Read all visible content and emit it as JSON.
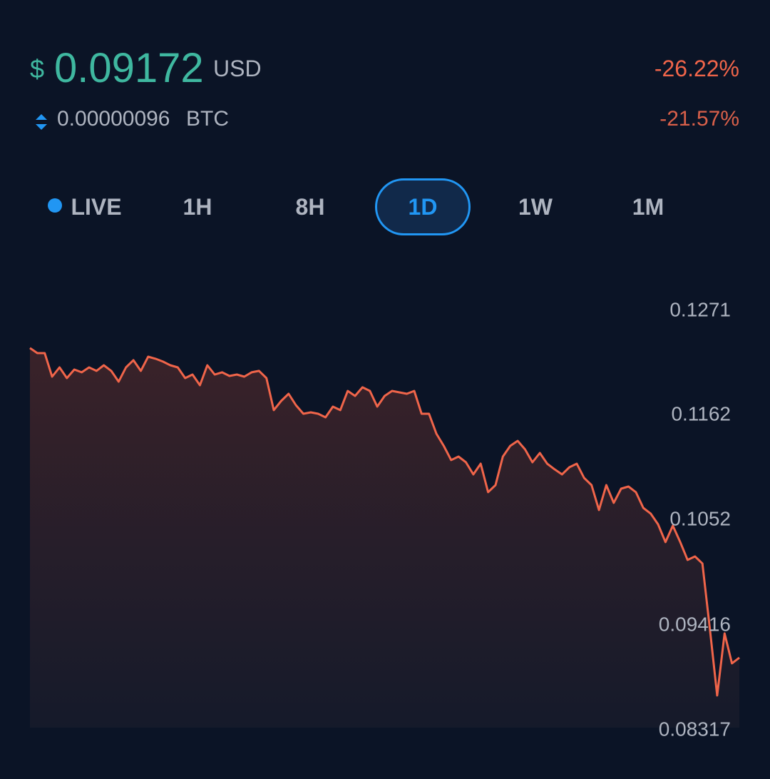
{
  "header": {
    "currency_symbol": "$",
    "price": "0.09172",
    "price_unit": "USD",
    "change_usd": "-26.22%",
    "btc_price": "0.00000096",
    "btc_unit": "BTC",
    "change_btc": "-21.57%"
  },
  "tabs": {
    "items": [
      "LIVE",
      "1H",
      "8H",
      "1D",
      "1W",
      "1M"
    ],
    "active": 3
  },
  "chart_data": {
    "type": "line",
    "color": "#f0654a",
    "ylim": [
      0.08317,
      0.1271
    ],
    "yticks": [
      0.1271,
      0.1162,
      0.1052,
      0.09416,
      0.08317
    ],
    "values": [
      0.12322,
      0.12269,
      0.12269,
      0.12023,
      0.1212,
      0.12008,
      0.12097,
      0.12068,
      0.1212,
      0.12083,
      0.12142,
      0.12083,
      0.1197,
      0.1212,
      0.12195,
      0.12083,
      0.12232,
      0.1221,
      0.1218,
      0.12142,
      0.1212,
      0.12008,
      0.12045,
      0.11933,
      0.12142,
      0.12045,
      0.12068,
      0.1203,
      0.12045,
      0.12023,
      0.12068,
      0.12083,
      0.12008,
      0.11672,
      0.11769,
      0.11843,
      0.11724,
      0.11634,
      0.11649,
      0.11634,
      0.11597,
      0.11709,
      0.11672,
      0.11873,
      0.11821,
      0.11911,
      0.11873,
      0.11709,
      0.11821,
      0.11873,
      0.11858,
      0.11843,
      0.11873,
      0.11634,
      0.11634,
      0.11425,
      0.11298,
      0.11149,
      0.11186,
      0.11126,
      0.10999,
      0.11111,
      0.10813,
      0.10887,
      0.11186,
      0.11298,
      0.1135,
      0.11261,
      0.11126,
      0.11223,
      0.11111,
      0.11052,
      0.10999,
      0.11074,
      0.11111,
      0.10962,
      0.10887,
      0.10626,
      0.10887,
      0.10701,
      0.1085,
      0.10872,
      0.10813,
      0.10648,
      0.10589,
      0.10476,
      0.1029,
      0.10462,
      0.1029,
      0.10103,
      0.1014,
      0.10066,
      0.09393,
      0.08684,
      0.09334,
      0.0902,
      0.0908
    ]
  }
}
